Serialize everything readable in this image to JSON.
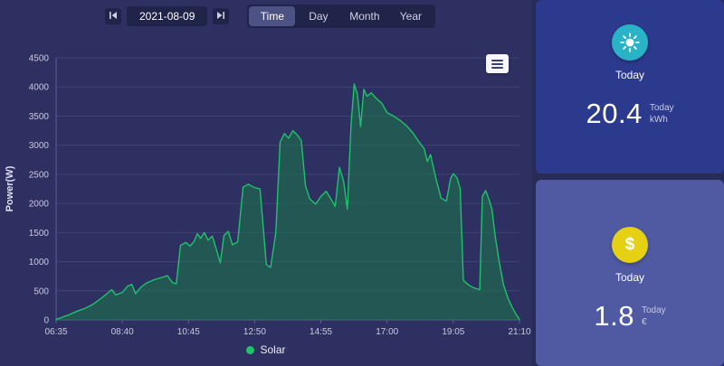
{
  "topbar": {
    "date": "2021-08-09",
    "tabs": [
      {
        "label": "Time",
        "active": true
      },
      {
        "label": "Day",
        "active": false
      },
      {
        "label": "Month",
        "active": false
      },
      {
        "label": "Year",
        "active": false
      }
    ],
    "icons": [
      "skip-prev-icon",
      "skip-next-icon"
    ]
  },
  "chart_data": {
    "type": "area",
    "title": "",
    "ylabel": "Power(W)",
    "ylim": [
      0,
      4500
    ],
    "y_step": 500,
    "x_range": [
      "06:35",
      "21:10"
    ],
    "x_ticks": [
      "06:35",
      "08:40",
      "10:45",
      "12:50",
      "14:55",
      "17:00",
      "19:05",
      "21:10"
    ],
    "grid": true,
    "legend_position": "bottom",
    "series": [
      {
        "name": "Solar",
        "color": "#1ec36a",
        "fill": "rgba(28,120,72,0.55)",
        "points": [
          [
            "06:35",
            10
          ],
          [
            "06:45",
            40
          ],
          [
            "07:00",
            90
          ],
          [
            "07:15",
            150
          ],
          [
            "07:30",
            200
          ],
          [
            "07:45",
            270
          ],
          [
            "08:00",
            370
          ],
          [
            "08:10",
            440
          ],
          [
            "08:20",
            520
          ],
          [
            "08:28",
            430
          ],
          [
            "08:40",
            470
          ],
          [
            "08:50",
            580
          ],
          [
            "08:58",
            610
          ],
          [
            "09:05",
            450
          ],
          [
            "09:15",
            560
          ],
          [
            "09:25",
            630
          ],
          [
            "09:40",
            690
          ],
          [
            "09:55",
            730
          ],
          [
            "10:05",
            760
          ],
          [
            "10:15",
            640
          ],
          [
            "10:22",
            620
          ],
          [
            "10:30",
            1280
          ],
          [
            "10:40",
            1330
          ],
          [
            "10:48",
            1270
          ],
          [
            "10:55",
            1340
          ],
          [
            "11:02",
            1480
          ],
          [
            "11:08",
            1400
          ],
          [
            "11:15",
            1500
          ],
          [
            "11:22",
            1370
          ],
          [
            "11:30",
            1440
          ],
          [
            "11:38",
            1200
          ],
          [
            "11:45",
            980
          ],
          [
            "11:52",
            1450
          ],
          [
            "12:00",
            1520
          ],
          [
            "12:08",
            1290
          ],
          [
            "12:18",
            1340
          ],
          [
            "12:28",
            2280
          ],
          [
            "12:38",
            2330
          ],
          [
            "12:50",
            2270
          ],
          [
            "13:00",
            2250
          ],
          [
            "13:06",
            1600
          ],
          [
            "13:12",
            950
          ],
          [
            "13:20",
            900
          ],
          [
            "13:30",
            1500
          ],
          [
            "13:38",
            3050
          ],
          [
            "13:46",
            3200
          ],
          [
            "13:54",
            3120
          ],
          [
            "14:02",
            3250
          ],
          [
            "14:10",
            3180
          ],
          [
            "14:18",
            3080
          ],
          [
            "14:26",
            2300
          ],
          [
            "14:34",
            2080
          ],
          [
            "14:45",
            1990
          ],
          [
            "14:55",
            2120
          ],
          [
            "15:05",
            2210
          ],
          [
            "15:15",
            2060
          ],
          [
            "15:22",
            1950
          ],
          [
            "15:30",
            2620
          ],
          [
            "15:38",
            2380
          ],
          [
            "15:45",
            1900
          ],
          [
            "15:52",
            3350
          ],
          [
            "15:58",
            4050
          ],
          [
            "16:04",
            3880
          ],
          [
            "16:10",
            3320
          ],
          [
            "16:16",
            3960
          ],
          [
            "16:22",
            3840
          ],
          [
            "16:30",
            3900
          ],
          [
            "16:40",
            3800
          ],
          [
            "16:50",
            3720
          ],
          [
            "17:00",
            3560
          ],
          [
            "17:12",
            3500
          ],
          [
            "17:24",
            3430
          ],
          [
            "17:36",
            3340
          ],
          [
            "17:48",
            3220
          ],
          [
            "18:00",
            3060
          ],
          [
            "18:10",
            2940
          ],
          [
            "18:16",
            2720
          ],
          [
            "18:22",
            2840
          ],
          [
            "18:32",
            2440
          ],
          [
            "18:42",
            2090
          ],
          [
            "18:52",
            2040
          ],
          [
            "19:00",
            2430
          ],
          [
            "19:05",
            2510
          ],
          [
            "19:12",
            2440
          ],
          [
            "19:18",
            2250
          ],
          [
            "19:24",
            680
          ],
          [
            "19:34",
            600
          ],
          [
            "19:44",
            550
          ],
          [
            "19:55",
            520
          ],
          [
            "20:00",
            2120
          ],
          [
            "20:06",
            2220
          ],
          [
            "20:12",
            2080
          ],
          [
            "20:18",
            1900
          ],
          [
            "20:24",
            1450
          ],
          [
            "20:32",
            980
          ],
          [
            "20:40",
            600
          ],
          [
            "20:48",
            380
          ],
          [
            "20:56",
            220
          ],
          [
            "21:04",
            90
          ],
          [
            "21:10",
            10
          ]
        ]
      }
    ]
  },
  "cards": [
    {
      "icon": "sun-icon",
      "icon_bg": "#28b4c6",
      "bg": "#2b3a8c",
      "period_label": "Today",
      "value": "20.4",
      "unit_line1": "Today",
      "unit_line2": "kWh"
    },
    {
      "icon": "dollar-icon",
      "icon_bg": "#e6d013",
      "bg": "#4f5aa3",
      "period_label": "Today",
      "value": "1.8",
      "unit_line1": "Today",
      "unit_line2": "€"
    }
  ],
  "colors": {
    "page_bg": "#272b58",
    "panel_bg": "#2e3062",
    "grid_line": "#3f4276",
    "axis_line": "#5a5e93",
    "tick_text": "#c7cade"
  }
}
